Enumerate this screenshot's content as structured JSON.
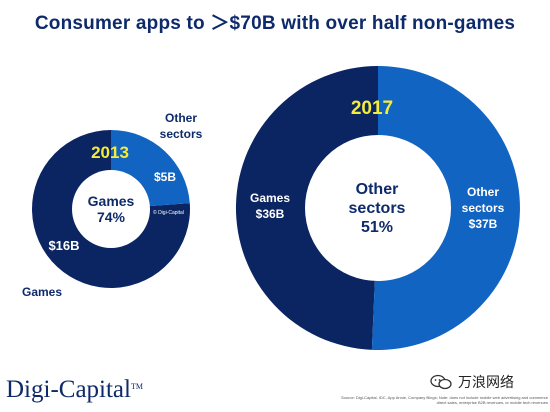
{
  "page": {
    "title": "Consumer apps to ＞$70B with over half non-games",
    "logo": "Digi-Capital",
    "logo_tm": "TM",
    "watermark": "万浪网络",
    "source_note": "Source: Digi-Capital, IDC, App Annie, Company filings; Note: does not include mobile web advertising and commerce direct sales, enterprise B2B revenues, or mobile tech revenues"
  },
  "colors": {
    "games": "#0b2563",
    "other": "#1164c2",
    "center": "#ffffff",
    "year_label": "#f5ec3a",
    "text_dark": "#0e2a6b",
    "text_light": "#ffffff"
  },
  "chart_data": [
    {
      "type": "pie",
      "year": "2013",
      "slices": [
        {
          "name": "Games",
          "value": 16,
          "label": "$16B"
        },
        {
          "name": "Other sectors",
          "value": 5,
          "label": "$5B"
        }
      ],
      "center_labels": [
        "Games",
        "74%"
      ],
      "outside_labels": {
        "games": "Games",
        "other": "Other sectors"
      },
      "inner_note": "© Digi-Capital"
    },
    {
      "type": "pie",
      "year": "2017",
      "slices": [
        {
          "name": "Games",
          "value": 36,
          "label": "$36B"
        },
        {
          "name": "Other sectors",
          "value": 37,
          "label": "$37B"
        }
      ],
      "center_labels": [
        "Other",
        "sectors",
        "51%"
      ],
      "inner_labels": {
        "games": "Games",
        "other": "Other sectors"
      }
    }
  ]
}
